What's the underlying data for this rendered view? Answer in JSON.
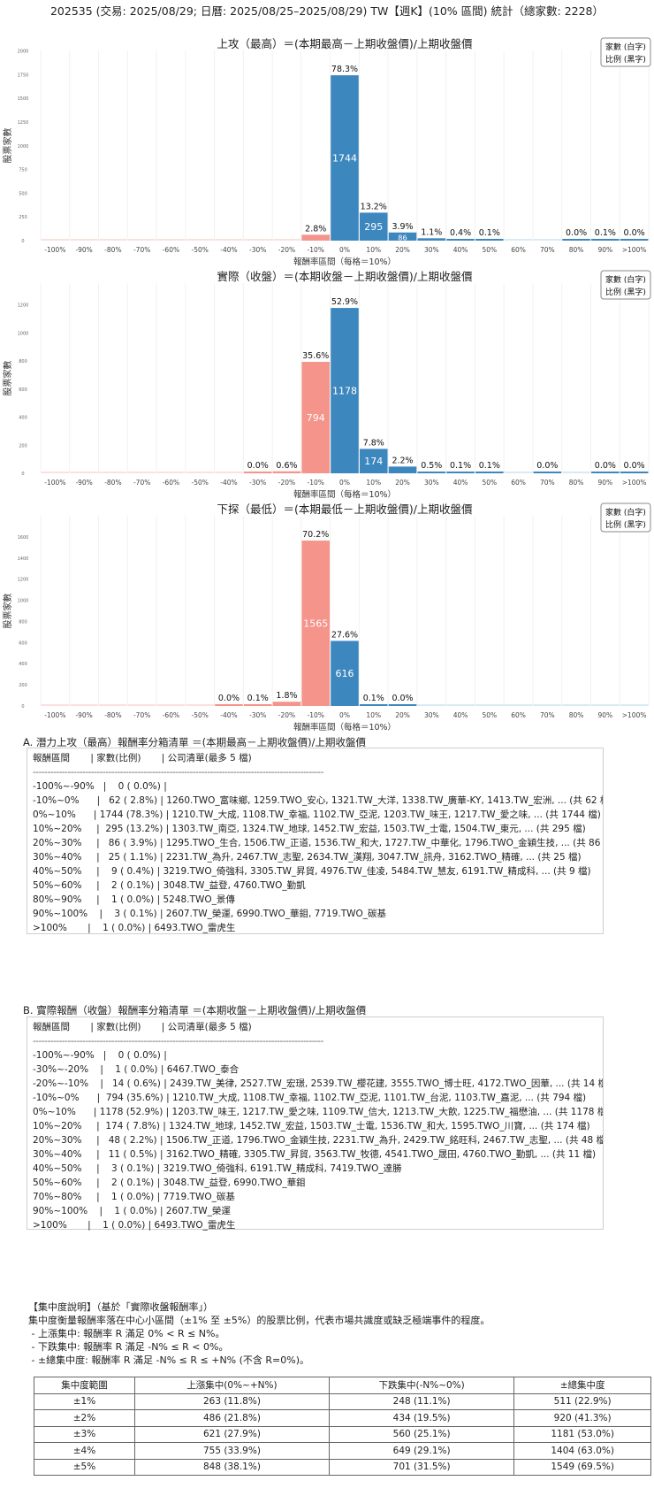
{
  "title": "202535 (交易: 2025/08/29; 日曆: 2025/08/25–2025/08/29) TW【週K】(10% 區間) 統計（總家數: 2228）",
  "chart_data": [
    {
      "type": "bar",
      "title": "上攻（最高）＝(本期最高－上期收盤價)/上期收盤價",
      "xlabel": "報酬率區間（每格＝10%）",
      "ylabel": "股票家數",
      "legend": [
        "家數 (白字)",
        "比例 (黑字)"
      ],
      "legend_position": "top-right",
      "categories": [
        "-100%",
        "-90%",
        "-80%",
        "-70%",
        "-60%",
        "-50%",
        "-40%",
        "-30%",
        "-20%",
        "-10%",
        "0%",
        "10%",
        "20%",
        "30%",
        "40%",
        "50%",
        "60%",
        "70%",
        "80%",
        "90%",
        ">100%"
      ],
      "values": [
        0,
        0,
        0,
        0,
        0,
        0,
        0,
        0,
        0,
        62,
        1744,
        295,
        86,
        25,
        9,
        2,
        0,
        0,
        1,
        3,
        1
      ],
      "percent_labels": [
        "",
        "",
        "",
        "",
        "",
        "",
        "",
        "",
        "",
        "2.8%",
        "78.3%",
        "13.2%",
        "3.9%",
        "1.1%",
        "0.4%",
        "0.1%",
        "",
        "",
        "0.0%",
        "0.1%",
        "0.0%"
      ],
      "yticks": [
        0,
        250,
        500,
        750,
        1000,
        1250,
        1500,
        1750,
        2000
      ],
      "ylim": [
        0,
        2006
      ],
      "grid": true
    },
    {
      "type": "bar",
      "title": "實際（收盤）＝(本期收盤－上期收盤價)/上期收盤價",
      "xlabel": "報酬率區間（每格＝10%）",
      "ylabel": "股票家數",
      "legend": [
        "家數 (白字)",
        "比例 (黑字)"
      ],
      "legend_position": "top-right",
      "categories": [
        "-100%",
        "-90%",
        "-80%",
        "-70%",
        "-60%",
        "-50%",
        "-40%",
        "-30%",
        "-20%",
        "-10%",
        "0%",
        "10%",
        "20%",
        "30%",
        "40%",
        "50%",
        "60%",
        "70%",
        "80%",
        "90%",
        ">100%"
      ],
      "values": [
        0,
        0,
        0,
        0,
        0,
        0,
        0,
        1,
        14,
        794,
        1178,
        174,
        48,
        11,
        3,
        2,
        0,
        1,
        0,
        1,
        1
      ],
      "percent_labels": [
        "",
        "",
        "",
        "",
        "",
        "",
        "",
        "0.0%",
        "0.6%",
        "35.6%",
        "52.9%",
        "7.8%",
        "2.2%",
        "0.5%",
        "0.1%",
        "0.1%",
        "",
        "0.0%",
        "",
        "0.0%",
        "0.0%"
      ],
      "yticks": [
        0,
        200,
        400,
        600,
        800,
        1000,
        1200
      ],
      "ylim": [
        0,
        1355
      ],
      "grid": true
    },
    {
      "type": "bar",
      "title": "下探（最低）＝(本期最低－上期收盤價)/上期收盤價",
      "xlabel": "報酬率區間（每格＝10%）",
      "ylabel": "股票家數",
      "legend": [
        "家數 (白字)",
        "比例 (黑字)"
      ],
      "legend_position": "top-right",
      "categories": [
        "-100%",
        "-90%",
        "-80%",
        "-70%",
        "-60%",
        "-50%",
        "-40%",
        "-30%",
        "-20%",
        "-10%",
        "0%",
        "10%",
        "20%",
        "30%",
        "40%",
        "50%",
        "60%",
        "70%",
        "80%",
        "90%",
        ">100%"
      ],
      "values": [
        0,
        0,
        0,
        0,
        0,
        0,
        1,
        2,
        40,
        1565,
        616,
        3,
        1,
        0,
        0,
        0,
        0,
        0,
        0,
        0,
        0
      ],
      "percent_labels": [
        "",
        "",
        "",
        "",
        "",
        "",
        "0.0%",
        "0.1%",
        "1.8%",
        "70.2%",
        "27.6%",
        "0.1%",
        "0.0%",
        "",
        "",
        "",
        "",
        "",
        "",
        "",
        ""
      ],
      "yticks": [
        0,
        200,
        400,
        600,
        800,
        1000,
        1200,
        1400,
        1600
      ],
      "ylim": [
        0,
        1800
      ],
      "grid": true
    }
  ],
  "colors": {
    "negative": "#f4948a",
    "positive": "#3d87bf",
    "negative_empty": "#fbe1de",
    "positive_empty": "#d9eaf5"
  },
  "section_a": {
    "heading": "A. 潛力上攻（最高）報酬率分箱清單 ＝(本期最高－上期收盤價)/上期收盤價",
    "header": "報酬區間       | 家數(比例)       | 公司清單(最多 5 檔)",
    "rows": [
      "-100%~-90%   |    0 ( 0.0%) |",
      "-10%~0%      |   62 ( 2.8%) | 1260.TWO_富味鄉, 1259.TWO_安心, 1321.TW_大洋, 1338.TW_廣華-KY, 1413.TW_宏洲, ... (共 62 檔)",
      "0%~10%      | 1744 (78.3%) | 1210.TW_大成, 1108.TW_幸福, 1102.TW_亞泥, 1203.TW_味王, 1217.TW_愛之味, ... (共 1744 檔)",
      "10%~20%     |  295 (13.2%) | 1303.TW_南亞, 1324.TW_地球, 1452.TW_宏益, 1503.TW_士電, 1504.TW_東元, ... (共 295 檔)",
      "20%~30%     |   86 ( 3.9%) | 1295.TWO_生合, 1506.TW_正道, 1536.TW_和大, 1727.TW_中華化, 1796.TWO_金穎生技, ... (共 86 檔)",
      "30%~40%     |   25 ( 1.1%) | 2231.TW_為升, 2467.TW_志聖, 2634.TW_漢翔, 3047.TW_訊舟, 3162.TWO_精確, ... (共 25 檔)",
      "40%~50%     |    9 ( 0.4%) | 3219.TWO_倚強科, 3305.TW_昇貿, 4976.TW_佳凌, 5484.TW_慧友, 6191.TW_精成科, ... (共 9 檔)",
      "50%~60%     |    2 ( 0.1%) | 3048.TW_益登, 4760.TWO_勤凱",
      "80%~90%     |    1 ( 0.0%) | 5248.TWO_景傳",
      "90%~100%    |    3 ( 0.1%) | 2607.TW_榮運, 6990.TWO_華鉬, 7719.TWO_碳基",
      ">100%       |    1 ( 0.0%) | 6493.TWO_雷虎生"
    ]
  },
  "section_b": {
    "heading": "B. 實際報酬（收盤）報酬率分箱清單 ＝(本期收盤－上期收盤價)/上期收盤價",
    "header": "報酬區間       | 家數(比例)       | 公司清單(最多 5 檔)",
    "rows": [
      "-100%~-90%   |    0 ( 0.0%) |",
      "-30%~-20%    |    1 ( 0.0%) | 6467.TWO_泰合",
      "-20%~-10%    |   14 ( 0.6%) | 2439.TW_美律, 2527.TW_宏璟, 2539.TW_櫻花建, 3555.TWO_博士旺, 4172.TWO_因華, ... (共 14 檔)",
      "-10%~0%      |  794 (35.6%) | 1210.TW_大成, 1108.TW_幸福, 1102.TW_亞泥, 1101.TW_台泥, 1103.TW_嘉泥, ... (共 794 檔)",
      "0%~10%      | 1178 (52.9%) | 1203.TW_味王, 1217.TW_愛之味, 1109.TW_信大, 1213.TW_大飲, 1225.TW_福懋油, ... (共 1178 檔)",
      "10%~20%     |  174 ( 7.8%) | 1324.TW_地球, 1452.TW_宏益, 1503.TW_士電, 1536.TW_和大, 1595.TWO_川寶, ... (共 174 檔)",
      "20%~30%     |   48 ( 2.2%) | 1506.TW_正道, 1796.TWO_金穎生技, 2231.TW_為升, 2429.TW_銘旺科, 2467.TW_志聖, ... (共 48 檔)",
      "30%~40%     |   11 ( 0.5%) | 3162.TWO_精確, 3305.TW_昇貿, 3563.TW_牧德, 4541.TWO_晟田, 4760.TWO_勤凱, ... (共 11 檔)",
      "40%~50%     |    3 ( 0.1%) | 3219.TWO_倚強科, 6191.TW_精成科, 7419.TWO_達勝",
      "50%~60%     |    2 ( 0.1%) | 3048.TW_益登, 6990.TWO_華鉬",
      "70%~80%     |    1 ( 0.0%) | 7719.TWO_碳基",
      "90%~100%    |    1 ( 0.0%) | 2607.TW_榮運",
      ">100%       |    1 ( 0.0%) | 6493.TWO_雷虎生"
    ]
  },
  "concentration": {
    "lines": [
      "【集中度說明】（基於「實際收盤報酬率」）",
      "集中度衡量報酬率落在中心小區間（±1% 至 ±5%）的股票比例，代表市場共識度或缺乏極端事件的程度。",
      " - 上漲集中: 報酬率 R 滿足 0% < R ≤ N%。",
      " - 下跌集中: 報酬率 R 滿足 -N% ≤ R < 0%。",
      " - ±總集中度: 報酬率 R 滿足 -N% ≤ R ≤ +N% (不含 R=0%)。"
    ],
    "table": {
      "headers": [
        "集中度範圍",
        "上漲集中(0%~+N%)",
        "下跌集中(-N%~0%)",
        "±總集中度"
      ],
      "rows": [
        [
          "±1%",
          "263 (11.8%)",
          "248 (11.1%)",
          "511 (22.9%)"
        ],
        [
          "±2%",
          "486 (21.8%)",
          "434 (19.5%)",
          "920 (41.3%)"
        ],
        [
          "±3%",
          "621 (27.9%)",
          "560 (25.1%)",
          "1181 (53.0%)"
        ],
        [
          "±4%",
          "755 (33.9%)",
          "649 (29.1%)",
          "1404 (63.0%)"
        ],
        [
          "±5%",
          "848 (38.1%)",
          "701 (31.5%)",
          "1549 (69.5%)"
        ]
      ]
    }
  }
}
